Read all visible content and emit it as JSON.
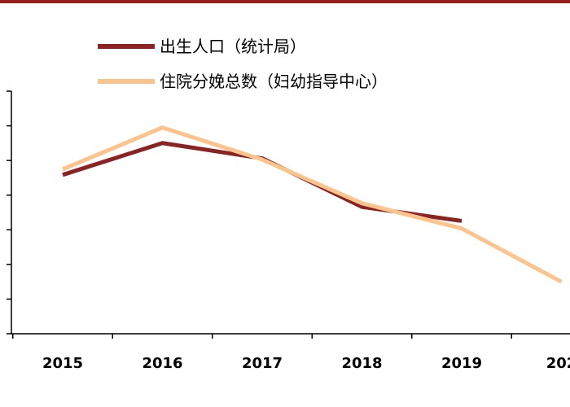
{
  "chart_data": {
    "type": "line",
    "categories": [
      "2015",
      "2016",
      "2017",
      "2018",
      "2019",
      "202"
    ],
    "series": [
      {
        "name": "出生人口（统计局）",
        "color": "#8b2323",
        "values": [
          1655,
          1786,
          1723,
          1523,
          1465,
          null
        ]
      },
      {
        "name": "住院分娩总数（妇幼指导中心）",
        "color": "#fcc48c",
        "values": [
          1678,
          1850,
          1718,
          1538,
          1434,
          1214
        ]
      }
    ],
    "ylim": [
      1000,
      2000
    ],
    "grid": false,
    "legend_position": "top-center"
  }
}
